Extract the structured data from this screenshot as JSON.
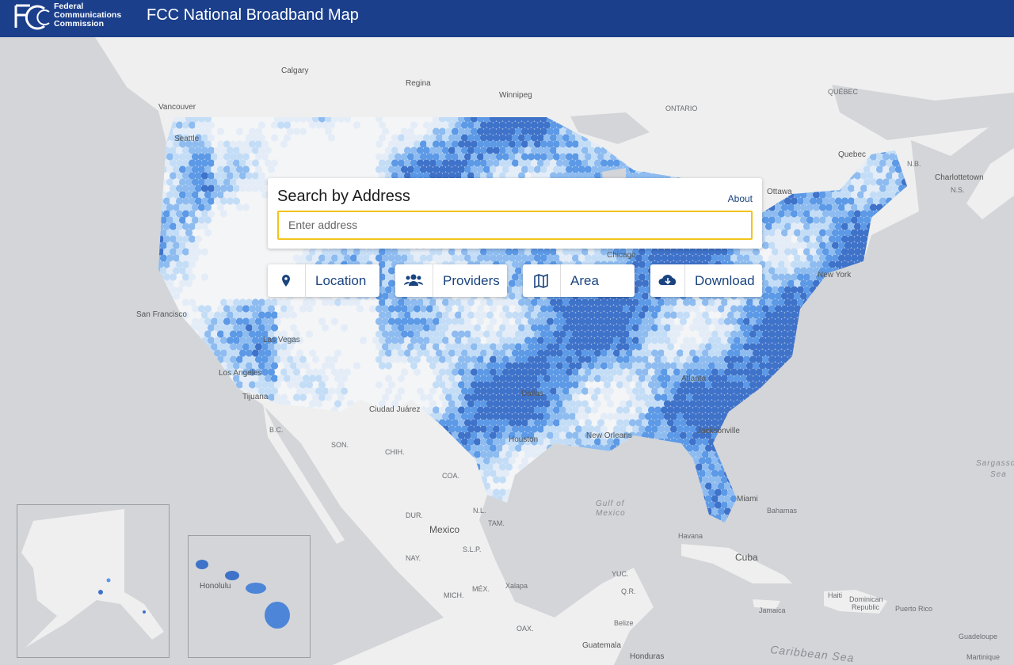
{
  "header": {
    "agency": [
      "Federal",
      "Communications",
      "Commission"
    ],
    "title": "FCC National Broadband Map"
  },
  "search": {
    "title": "Search by Address",
    "about": "About",
    "placeholder": "Enter address"
  },
  "buttons": [
    {
      "label": "Location"
    },
    {
      "label": "Providers"
    },
    {
      "label": "Area"
    },
    {
      "label": "Download"
    }
  ],
  "map_labels": [
    "Calgary",
    "Regina",
    "Winnipeg",
    "Vancouver",
    "ONTARIO",
    "QUÉBEC",
    "Quebec",
    "Ottawa",
    "N.B.",
    "Charlottetown",
    "N.S.",
    "Seattle",
    "Chicago",
    "New York",
    "San Francisco",
    "Las Vegas",
    "Los Angeles",
    "Tijuana",
    "Ciudad Juárez",
    "Dallas",
    "Houston",
    "New Orleans",
    "Atlanta",
    "Jacksonville",
    "Miami",
    "Bahamas",
    "Havana",
    "Cuba",
    "Gulf of",
    "Mexico",
    "Mexico",
    "Sargasso",
    "Sea",
    "Caribbean Sea",
    "Haiti",
    "Dominican",
    "Republic",
    "Jamaica",
    "Puerto Rico",
    "Guadeloupe",
    "Martinique",
    "Belize",
    "Guatemala",
    "Honduras",
    "Honolulu",
    "Xalapa",
    "B.C.",
    "SON.",
    "CHIH.",
    "COA.",
    "DUR.",
    "N.L.",
    "TAM.",
    "NAY.",
    "S.L.P.",
    "MICH.",
    "MÉX.",
    "YUC.",
    "Q.R.",
    "OAX."
  ]
}
